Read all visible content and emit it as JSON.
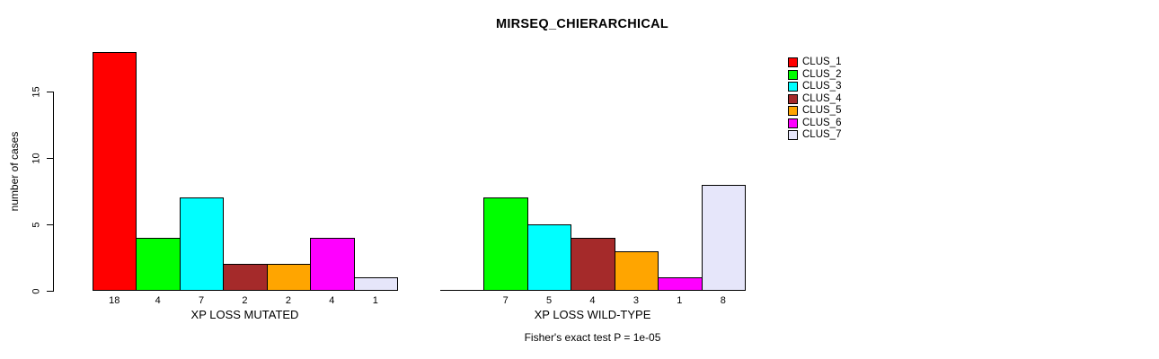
{
  "chart_data": {
    "type": "bar",
    "title": "MIRSEQ_CHIERARCHICAL",
    "ylabel": "number of cases",
    "xlabel": "",
    "ylim": [
      0,
      18
    ],
    "yticks": [
      0,
      5,
      10,
      15
    ],
    "grid": false,
    "legend_position": "right",
    "categories": [
      "CLUS_1",
      "CLUS_2",
      "CLUS_3",
      "CLUS_4",
      "CLUS_5",
      "CLUS_6",
      "CLUS_7"
    ],
    "colors": [
      "#FF0000",
      "#00FF00",
      "#00FFFF",
      "#A52A2A",
      "#FFA500",
      "#FF00FF",
      "#E6E6FA"
    ],
    "groups": [
      {
        "label": "XP LOSS MUTATED",
        "values": [
          18,
          4,
          7,
          2,
          2,
          4,
          1
        ],
        "bar_labels": [
          "18",
          "4",
          "7",
          "2",
          "2",
          "4",
          "1"
        ]
      },
      {
        "label": "XP LOSS WILD-TYPE",
        "values": [
          0,
          7,
          5,
          4,
          3,
          1,
          8
        ],
        "bar_labels": [
          "",
          "7",
          "5",
          "4",
          "3",
          "1",
          "8"
        ]
      }
    ],
    "footnote": "Fisher's exact test P = 1e-05"
  }
}
